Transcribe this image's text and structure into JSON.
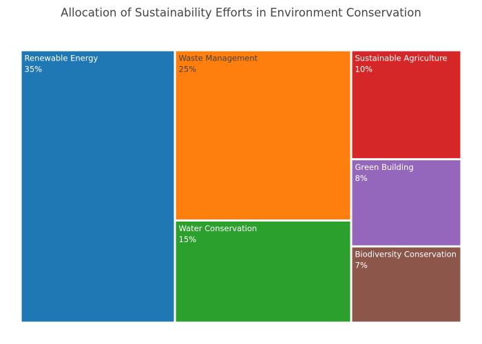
{
  "title": "Allocation of Sustainability Efforts in Environment Conservation",
  "chart_data": {
    "type": "treemap",
    "title": "Allocation of Sustainability Efforts in Environment Conservation",
    "items": [
      {
        "label": "Renewable Energy",
        "value": 35,
        "value_text": "35%",
        "color": "#1f77b4",
        "text_color": "#ffffff"
      },
      {
        "label": "Waste Management",
        "value": 25,
        "value_text": "25%",
        "color": "#ff7f0e",
        "text_color": "#444444"
      },
      {
        "label": "Water Conservation",
        "value": 15,
        "value_text": "15%",
        "color": "#2ca02c",
        "text_color": "#ffffff"
      },
      {
        "label": "Sustainable Agriculture",
        "value": 10,
        "value_text": "10%",
        "color": "#d62728",
        "text_color": "#ffffff"
      },
      {
        "label": "Green Building",
        "value": 8,
        "value_text": "8%",
        "color": "#9467bd",
        "text_color": "#ffffff"
      },
      {
        "label": "Biodiversity Conservation",
        "value": 7,
        "value_text": "7%",
        "color": "#8c564b",
        "text_color": "#ffffff"
      }
    ]
  }
}
